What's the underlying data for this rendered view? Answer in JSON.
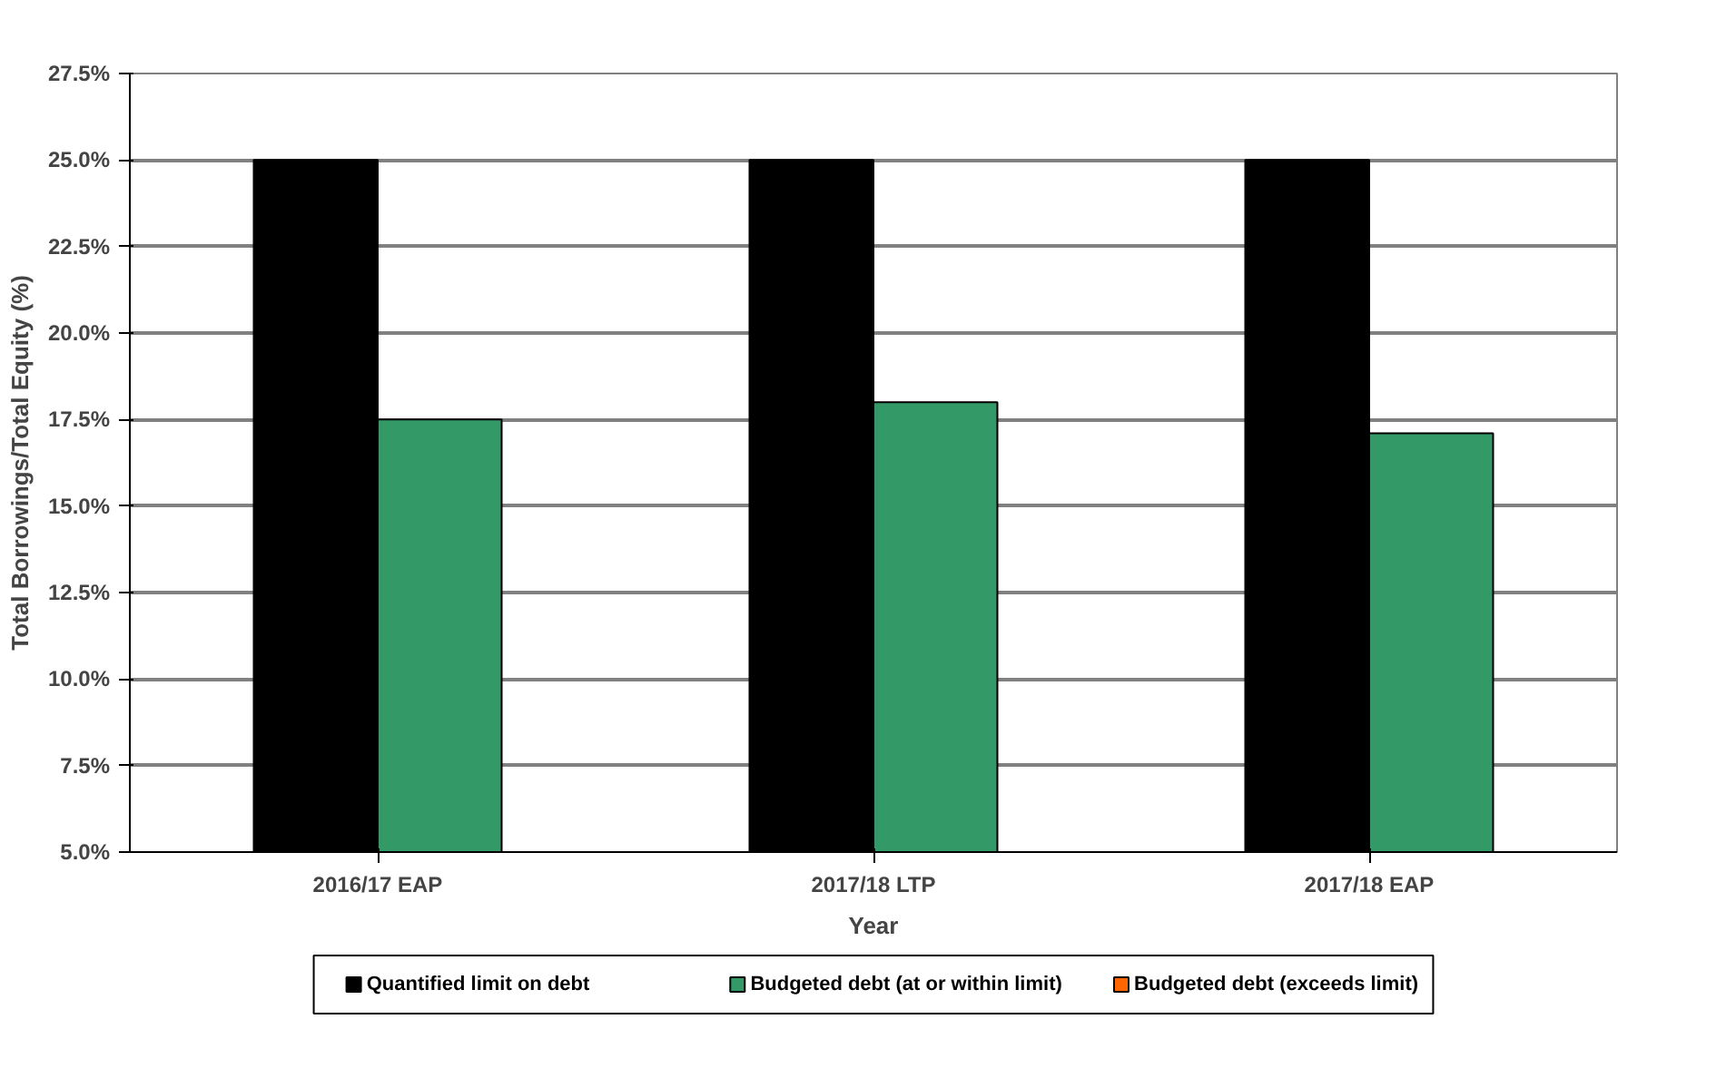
{
  "chart_data": {
    "type": "bar",
    "xlabel": "Year",
    "ylabel": "Total Borrowings/Total Equity (%)",
    "categories": [
      "2016/17 EAP",
      "2017/18 LTP",
      "2017/18 EAP"
    ],
    "series": [
      {
        "name": "Quantified limit on debt",
        "color": "#000000",
        "values": [
          25.0,
          25.0,
          25.0
        ]
      },
      {
        "name": "Budgeted debt (at or within limit)",
        "color": "#339966",
        "values": [
          17.5,
          18.0,
          17.1
        ]
      },
      {
        "name": "Budgeted debt (exceeds limit)",
        "color": "#ff6600",
        "values": [
          null,
          null,
          null
        ]
      }
    ],
    "ylim": [
      5.0,
      27.5
    ],
    "yticks": [
      {
        "value": 5.0,
        "label": "5.0%"
      },
      {
        "value": 7.5,
        "label": "7.5%"
      },
      {
        "value": 10.0,
        "label": "10.0%"
      },
      {
        "value": 12.5,
        "label": "12.5%"
      },
      {
        "value": 15.0,
        "label": "15.0%"
      },
      {
        "value": 17.5,
        "label": "17.5%"
      },
      {
        "value": 20.0,
        "label": "20.0%"
      },
      {
        "value": 22.5,
        "label": "22.5%"
      },
      {
        "value": 25.0,
        "label": "25.0%"
      },
      {
        "value": 27.5,
        "label": "27.5%"
      }
    ],
    "grid": "y",
    "legend": "bottom"
  }
}
